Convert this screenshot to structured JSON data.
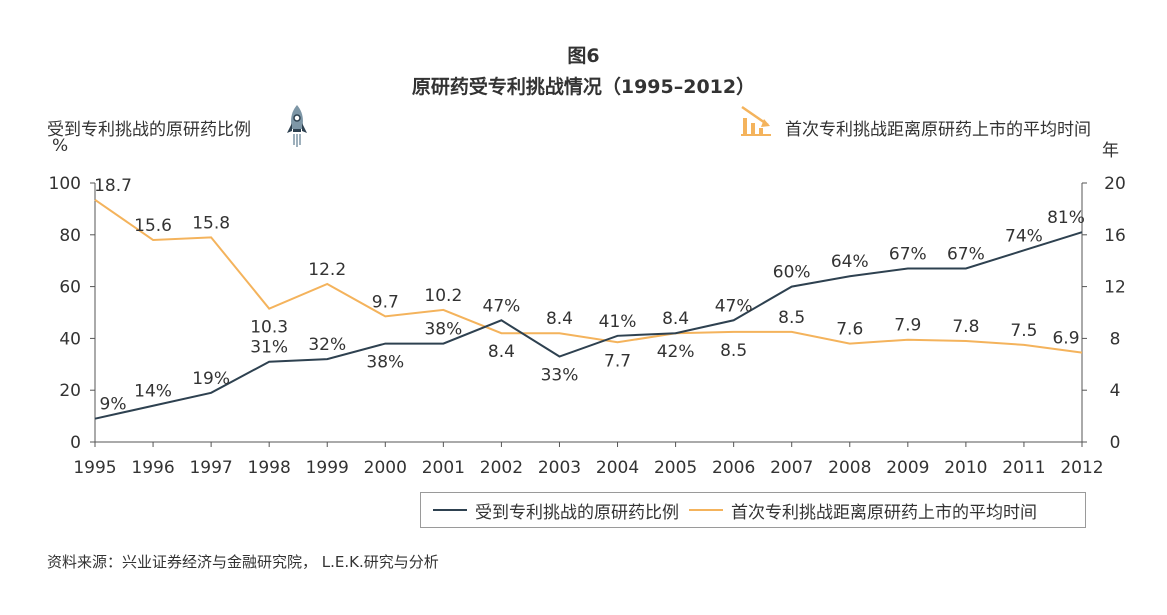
{
  "figure": {
    "number": "图6",
    "title": "原研药受专利挑战情况（1995–2012）"
  },
  "source": "资料来源：兴业证券经济与金融研究院， L.E.K.研究与分析",
  "colors": {
    "series1": "#2e4150",
    "series2": "#f4b35c",
    "axis": "#555555"
  },
  "icons": {
    "left_axis": "rocket-icon",
    "right_axis": "declining-bar-chart-icon"
  },
  "chart_data": {
    "type": "line",
    "x": [
      "1995",
      "1996",
      "1997",
      "1998",
      "1999",
      "2000",
      "2001",
      "2002",
      "2003",
      "2004",
      "2005",
      "2006",
      "2007",
      "2008",
      "2009",
      "2010",
      "2011",
      "2012"
    ],
    "y_left": {
      "label": "受到专利挑战的原研药比例",
      "unit": "%",
      "range": [
        0,
        100
      ],
      "ticks": [
        "0",
        "20",
        "40",
        "60",
        "80",
        "100"
      ]
    },
    "y_right": {
      "label": "首次专利挑战距离原研药上市的平均时间",
      "unit": "年",
      "range": [
        0,
        20
      ],
      "ticks": [
        "0",
        "4",
        "8",
        "12",
        "16",
        "20"
      ]
    },
    "series": [
      {
        "name": "受到专利挑战的原研药比例",
        "axis": "left",
        "values": [
          9,
          14,
          19,
          31,
          32,
          38,
          38,
          47,
          33,
          41,
          42,
          47,
          60,
          64,
          67,
          67,
          74,
          81
        ],
        "labels": [
          "9%",
          "14%",
          "19%",
          "31%",
          "32%",
          "38%",
          "38%",
          "47%",
          "33%",
          "41%",
          "42%",
          "47%",
          "60%",
          "64%",
          "67%",
          "67%",
          "74%",
          "81%"
        ]
      },
      {
        "name": "首次专利挑战距离原研药上市的平均时间",
        "axis": "right",
        "values": [
          18.7,
          15.6,
          15.8,
          10.3,
          12.2,
          9.7,
          10.2,
          8.4,
          8.4,
          7.7,
          8.4,
          8.5,
          8.5,
          7.6,
          7.9,
          7.8,
          7.5,
          6.9
        ],
        "labels": [
          "18.7",
          "15.6",
          "15.8",
          "10.3",
          "12.2",
          "9.7",
          "10.2",
          "8.4",
          "8.4",
          "7.7",
          "8.4",
          "8.5",
          "8.5",
          "7.6",
          "7.9",
          "7.8",
          "7.5",
          "6.9"
        ]
      }
    ],
    "legend": "bottom-right",
    "grid": false
  }
}
